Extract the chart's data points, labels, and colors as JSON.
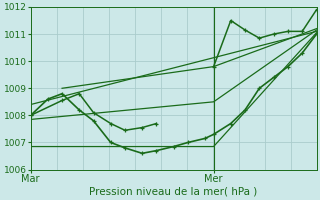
{
  "bg_color": "#cce8e8",
  "grid_color": "#aacccc",
  "line_color": "#1a6b1a",
  "marker_color": "#1a6b1a",
  "xlabel": "Pression niveau de la mer( hPa )",
  "ylim": [
    1006,
    1012
  ],
  "yticks": [
    1006,
    1007,
    1008,
    1009,
    1010,
    1011,
    1012
  ],
  "xlim": [
    0,
    1.0
  ],
  "xtick_labels": [
    "Mar",
    "Mer"
  ],
  "xtick_positions": [
    0.0,
    0.64
  ],
  "vline_x": 0.64,
  "series": [
    {
      "x": [
        0.0,
        0.06,
        0.11,
        0.17,
        0.22,
        0.28,
        0.33,
        0.39,
        0.44,
        0.5,
        0.55,
        0.61,
        0.64,
        0.7,
        0.75,
        0.8,
        0.85,
        0.9,
        0.95,
        1.0
      ],
      "y": [
        1008.0,
        1008.6,
        1008.8,
        1008.2,
        1007.8,
        1007.0,
        1006.8,
        1006.6,
        1006.7,
        1006.85,
        1007.0,
        1007.15,
        1007.3,
        1007.7,
        1008.2,
        1009.0,
        1009.4,
        1009.8,
        1010.3,
        1011.0
      ],
      "lw": 1.2,
      "markers": true
    },
    {
      "x": [
        0.0,
        0.64,
        1.0
      ],
      "y": [
        1006.85,
        1006.85,
        1011.05
      ],
      "lw": 0.9,
      "markers": false
    },
    {
      "x": [
        0.0,
        0.64,
        1.0
      ],
      "y": [
        1007.85,
        1008.5,
        1011.15
      ],
      "lw": 0.9,
      "markers": false
    },
    {
      "x": [
        0.0,
        1.0
      ],
      "y": [
        1008.4,
        1011.1
      ],
      "lw": 0.9,
      "markers": false
    },
    {
      "x": [
        0.11,
        0.64,
        1.0
      ],
      "y": [
        1009.0,
        1009.8,
        1011.2
      ],
      "lw": 0.9,
      "markers": false
    },
    {
      "x": [
        0.0,
        0.11,
        0.17,
        0.22,
        0.28,
        0.33,
        0.39,
        0.44
      ],
      "y": [
        1008.0,
        1008.55,
        1008.8,
        1008.1,
        1007.7,
        1007.45,
        1007.55,
        1007.7
      ],
      "lw": 1.1,
      "markers": true
    },
    {
      "x": [
        0.64,
        0.7,
        0.75,
        0.8,
        0.85,
        0.9,
        0.95,
        1.0
      ],
      "y": [
        1009.8,
        1011.5,
        1011.15,
        1010.85,
        1011.0,
        1011.1,
        1011.1,
        1011.9
      ],
      "lw": 1.1,
      "markers": true
    }
  ]
}
